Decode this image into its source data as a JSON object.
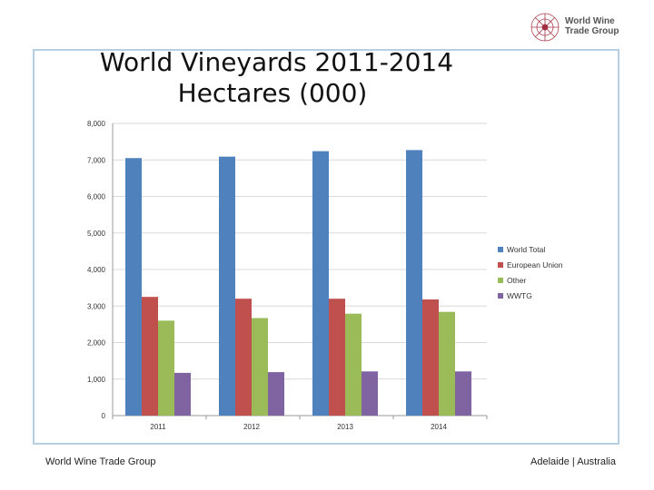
{
  "slide": {
    "title_line1": "World Vineyards 2011-2014",
    "title_line2": "Hectares (000)",
    "footer_left": "World Wine Trade Group",
    "footer_right": "Adelaide | Australia",
    "logo_line1": "World Wine",
    "logo_line2": "Trade Group"
  },
  "chart_data": {
    "type": "bar",
    "title": "World Vineyards 2011-2014 Hectares (000)",
    "categories": [
      "2011",
      "2012",
      "2013",
      "2014"
    ],
    "series": [
      {
        "name": "World Total",
        "color": "#4f81bd",
        "values": [
          7050,
          7090,
          7240,
          7270
        ]
      },
      {
        "name": "European Union",
        "color": "#c0504d",
        "values": [
          3250,
          3200,
          3200,
          3180
        ]
      },
      {
        "name": "Other",
        "color": "#9bbb59",
        "values": [
          2600,
          2670,
          2790,
          2840
        ]
      },
      {
        "name": "WWTG",
        "color": "#8064a2",
        "values": [
          1170,
          1190,
          1210,
          1210
        ]
      }
    ],
    "yticks": [
      "0",
      "1,000",
      "2,000",
      "3,000",
      "4,000",
      "5,000",
      "6,000",
      "7,000",
      "8,000"
    ],
    "ylim": [
      0,
      8000
    ],
    "grid": true,
    "legend": "right"
  }
}
